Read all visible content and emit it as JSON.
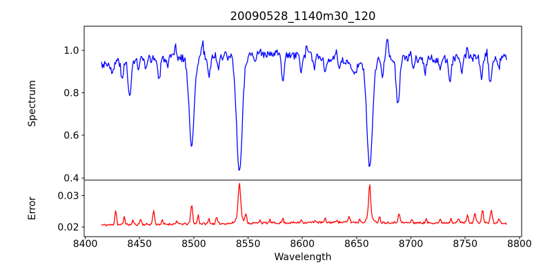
{
  "figure": {
    "title": "20090528_1140m30_120",
    "xlabel": "Wavelength",
    "background_color": "#ffffff",
    "axis_color": "#000000"
  },
  "chart_data": [
    {
      "type": "line",
      "name": "spectrum",
      "ylabel": "Spectrum",
      "line_color": "#0000ff",
      "xlim": [
        8399,
        8802
      ],
      "ylim": [
        0.39,
        1.113
      ],
      "grid": false,
      "legend": "none",
      "yticks": [
        {
          "v": 0.4,
          "label": "0.4"
        },
        {
          "v": 0.6,
          "label": "0.6"
        },
        {
          "v": 0.8,
          "label": "0.8"
        },
        {
          "v": 1.0,
          "label": "1.0"
        }
      ],
      "x_start": 8415,
      "x_end": 8788,
      "n_points": 520,
      "continuum": [
        [
          8415,
          0.935
        ],
        [
          8422,
          0.94
        ],
        [
          8432,
          0.952
        ],
        [
          8450,
          0.958
        ],
        [
          8470,
          0.962
        ],
        [
          8490,
          0.965
        ],
        [
          8510,
          0.968
        ],
        [
          8535,
          0.972
        ],
        [
          8565,
          0.978
        ],
        [
          8590,
          0.975
        ],
        [
          8610,
          0.972
        ],
        [
          8628,
          0.962
        ],
        [
          8641,
          0.942
        ],
        [
          8652,
          0.938
        ],
        [
          8658,
          0.945
        ],
        [
          8668,
          0.955
        ],
        [
          8678,
          0.975
        ],
        [
          8695,
          0.962
        ],
        [
          8715,
          0.958
        ],
        [
          8735,
          0.96
        ],
        [
          8755,
          0.965
        ],
        [
          8775,
          0.962
        ],
        [
          8788,
          0.965
        ]
      ],
      "absorption_lines": [
        [
          8425,
          0.06,
          1.2
        ],
        [
          8434,
          0.1,
          1.1
        ],
        [
          8441,
          0.18,
          1.4
        ],
        [
          8449,
          0.05,
          0.9
        ],
        [
          8456,
          0.06,
          1.0
        ],
        [
          8468,
          0.1,
          1.2
        ],
        [
          8476,
          0.05,
          0.9
        ],
        [
          8498,
          0.41,
          2.4
        ],
        [
          8514,
          0.09,
          1.1
        ],
        [
          8523,
          0.05,
          0.9
        ],
        [
          8542,
          0.545,
          2.6
        ],
        [
          8556,
          0.04,
          0.9
        ],
        [
          8582,
          0.11,
          1.3
        ],
        [
          8599,
          0.07,
          1.0
        ],
        [
          8611,
          0.05,
          0.9
        ],
        [
          8621,
          0.07,
          1.0
        ],
        [
          8634,
          0.05,
          1.0
        ],
        [
          8648,
          0.06,
          1.6
        ],
        [
          8662,
          0.5,
          2.5
        ],
        [
          8674,
          0.08,
          1.1
        ],
        [
          8688,
          0.22,
          1.6
        ],
        [
          8702,
          0.05,
          0.9
        ],
        [
          8713,
          0.06,
          1.0
        ],
        [
          8727,
          0.05,
          0.9
        ],
        [
          8736,
          0.11,
          1.2
        ],
        [
          8747,
          0.06,
          0.9
        ],
        [
          8765,
          0.09,
          1.1
        ],
        [
          8773,
          0.11,
          1.2
        ],
        [
          8781,
          0.05,
          0.9
        ]
      ],
      "emission_spikes": [
        [
          8483,
          0.05,
          0.9
        ],
        [
          8508,
          0.065,
          0.9
        ],
        [
          8529,
          0.04,
          0.8
        ],
        [
          8561,
          0.035,
          0.8
        ],
        [
          8576,
          0.025,
          0.7
        ],
        [
          8604,
          0.04,
          0.8
        ],
        [
          8631,
          0.03,
          0.7
        ],
        [
          8678,
          0.09,
          1.0
        ],
        [
          8700,
          0.025,
          0.7
        ],
        [
          8752,
          0.05,
          0.9
        ],
        [
          8770,
          0.03,
          0.7
        ]
      ],
      "noise_amplitude": 0.02,
      "noise_seed": 3
    },
    {
      "type": "line",
      "name": "error",
      "ylabel": "Error",
      "line_color": "#ff0000",
      "xlim": [
        8399,
        8802
      ],
      "ylim": [
        0.0169,
        0.0349
      ],
      "grid": false,
      "legend": "none",
      "yticks": [
        {
          "v": 0.02,
          "label": "0.02"
        },
        {
          "v": 0.03,
          "label": "0.03"
        }
      ],
      "xticks": [
        {
          "v": 8400,
          "label": "8400"
        },
        {
          "v": 8450,
          "label": "8450"
        },
        {
          "v": 8500,
          "label": "8500"
        },
        {
          "v": 8550,
          "label": "8550"
        },
        {
          "v": 8600,
          "label": "8600"
        },
        {
          "v": 8650,
          "label": "8650"
        },
        {
          "v": 8700,
          "label": "8700"
        },
        {
          "v": 8750,
          "label": "8750"
        },
        {
          "v": 8800,
          "label": "8800"
        }
      ],
      "x_start": 8415,
      "x_end": 8788,
      "n_points": 520,
      "baseline": [
        [
          8415,
          0.0206
        ],
        [
          8455,
          0.0208
        ],
        [
          8505,
          0.021
        ],
        [
          8555,
          0.0212
        ],
        [
          8605,
          0.0214
        ],
        [
          8655,
          0.0215
        ],
        [
          8705,
          0.0213
        ],
        [
          8755,
          0.0214
        ],
        [
          8788,
          0.0211
        ]
      ],
      "peaks": [
        [
          8428,
          0.0046,
          0.8
        ],
        [
          8436,
          0.0026,
          0.7
        ],
        [
          8444,
          0.0014,
          0.6
        ],
        [
          8451,
          0.0018,
          0.7
        ],
        [
          8463,
          0.0044,
          0.8
        ],
        [
          8471,
          0.0012,
          0.6
        ],
        [
          8484,
          0.001,
          0.6
        ],
        [
          8498,
          0.006,
          0.9
        ],
        [
          8504,
          0.0028,
          0.7
        ],
        [
          8514,
          0.0016,
          0.6
        ],
        [
          8521,
          0.002,
          0.7
        ],
        [
          8542,
          0.0105,
          1.0
        ],
        [
          8542,
          0.0028,
          2.6
        ],
        [
          8548,
          0.0026,
          0.8
        ],
        [
          8561,
          0.0013,
          0.6
        ],
        [
          8570,
          0.001,
          0.6
        ],
        [
          8582,
          0.0015,
          0.6
        ],
        [
          8599,
          0.0012,
          0.6
        ],
        [
          8612,
          0.0009,
          0.6
        ],
        [
          8621,
          0.0012,
          0.6
        ],
        [
          8632,
          0.001,
          0.6
        ],
        [
          8643,
          0.002,
          0.7
        ],
        [
          8653,
          0.0011,
          0.6
        ],
        [
          8662,
          0.0098,
          0.9
        ],
        [
          8662,
          0.0024,
          2.2
        ],
        [
          8671,
          0.002,
          0.7
        ],
        [
          8689,
          0.0032,
          0.8
        ],
        [
          8701,
          0.0011,
          0.6
        ],
        [
          8714,
          0.0011,
          0.6
        ],
        [
          8727,
          0.001,
          0.6
        ],
        [
          8737,
          0.0016,
          0.6
        ],
        [
          8744,
          0.0014,
          0.6
        ],
        [
          8752,
          0.0022,
          0.8
        ],
        [
          8759,
          0.003,
          0.8
        ],
        [
          8766,
          0.0038,
          0.9
        ],
        [
          8774,
          0.004,
          0.9
        ],
        [
          8781,
          0.0018,
          0.7
        ]
      ],
      "noise_amplitude": 0.00035,
      "noise_seed": 11
    }
  ]
}
